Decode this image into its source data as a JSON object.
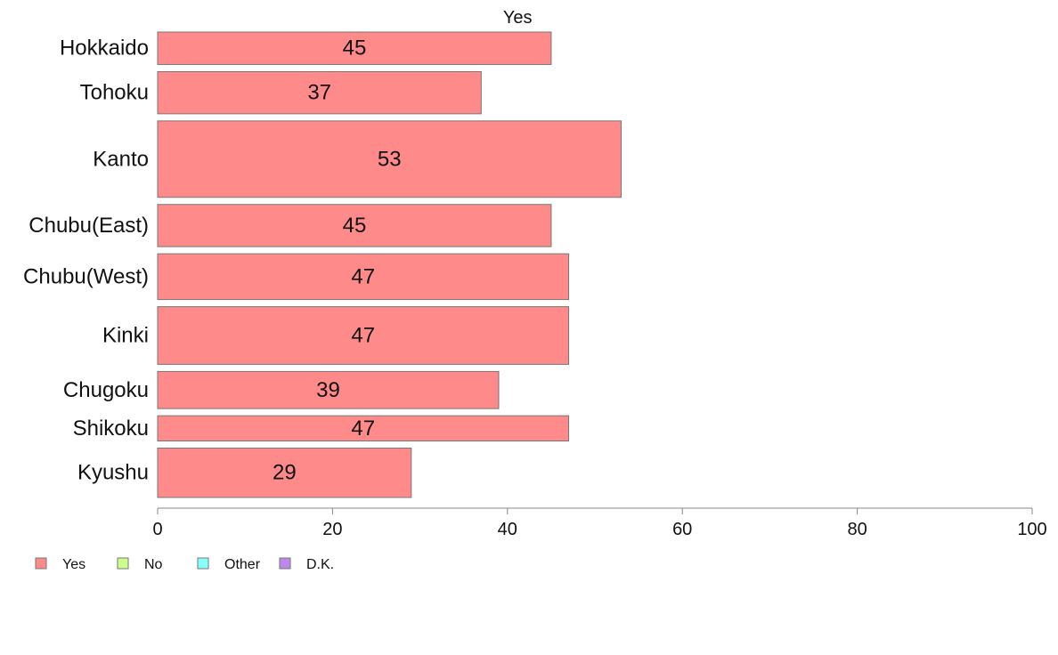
{
  "chart_data": {
    "type": "bar",
    "orientation": "horizontal",
    "stacked": true,
    "title": "",
    "xlabel": "",
    "ylabel": "",
    "xlim": [
      0,
      100
    ],
    "x_ticks": [
      0,
      20,
      40,
      60,
      80,
      100
    ],
    "grid": false,
    "categories": [
      "Hokkaido",
      "Tohoku",
      "Kanto",
      "Chubu(East)",
      "Chubu(West)",
      "Kinki",
      "Chugoku",
      "Shikoku",
      "Kyushu"
    ],
    "category_weights": [
      0.9,
      1.17,
      2.12,
      1.17,
      1.27,
      1.6,
      1.03,
      0.7,
      1.37
    ],
    "series": [
      {
        "name": "Yes",
        "color": "#ff8a8a",
        "values": [
          45,
          37,
          53,
          45,
          47,
          47,
          39,
          47,
          29
        ],
        "labels": [
          "45",
          "37",
          "53",
          "45",
          "47",
          "47",
          "39",
          "47",
          "29"
        ]
      }
    ],
    "series_title": "Yes",
    "legend": {
      "placement": "bottom-left",
      "items": [
        {
          "label": "Yes",
          "color": "#ff8a8a"
        },
        {
          "label": "No",
          "color": "#ccff88"
        },
        {
          "label": "Other",
          "color": "#88ffff"
        },
        {
          "label": "D.K.",
          "color": "#bb88ee"
        }
      ]
    }
  }
}
